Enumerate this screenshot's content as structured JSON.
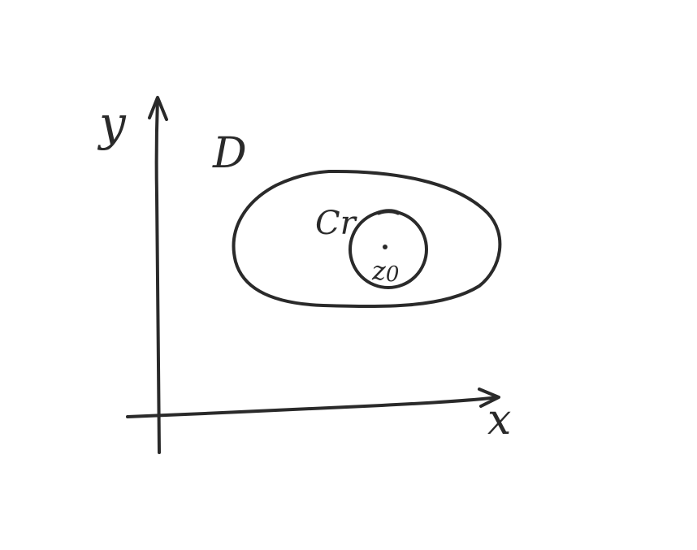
{
  "labels": {
    "y_axis": "y",
    "x_axis": "x",
    "region": "D",
    "circle": "Cr",
    "center_point": "z",
    "center_subscript": "0"
  },
  "colors": {
    "ink": "#2a2a2a",
    "paper": "#ffffff"
  }
}
